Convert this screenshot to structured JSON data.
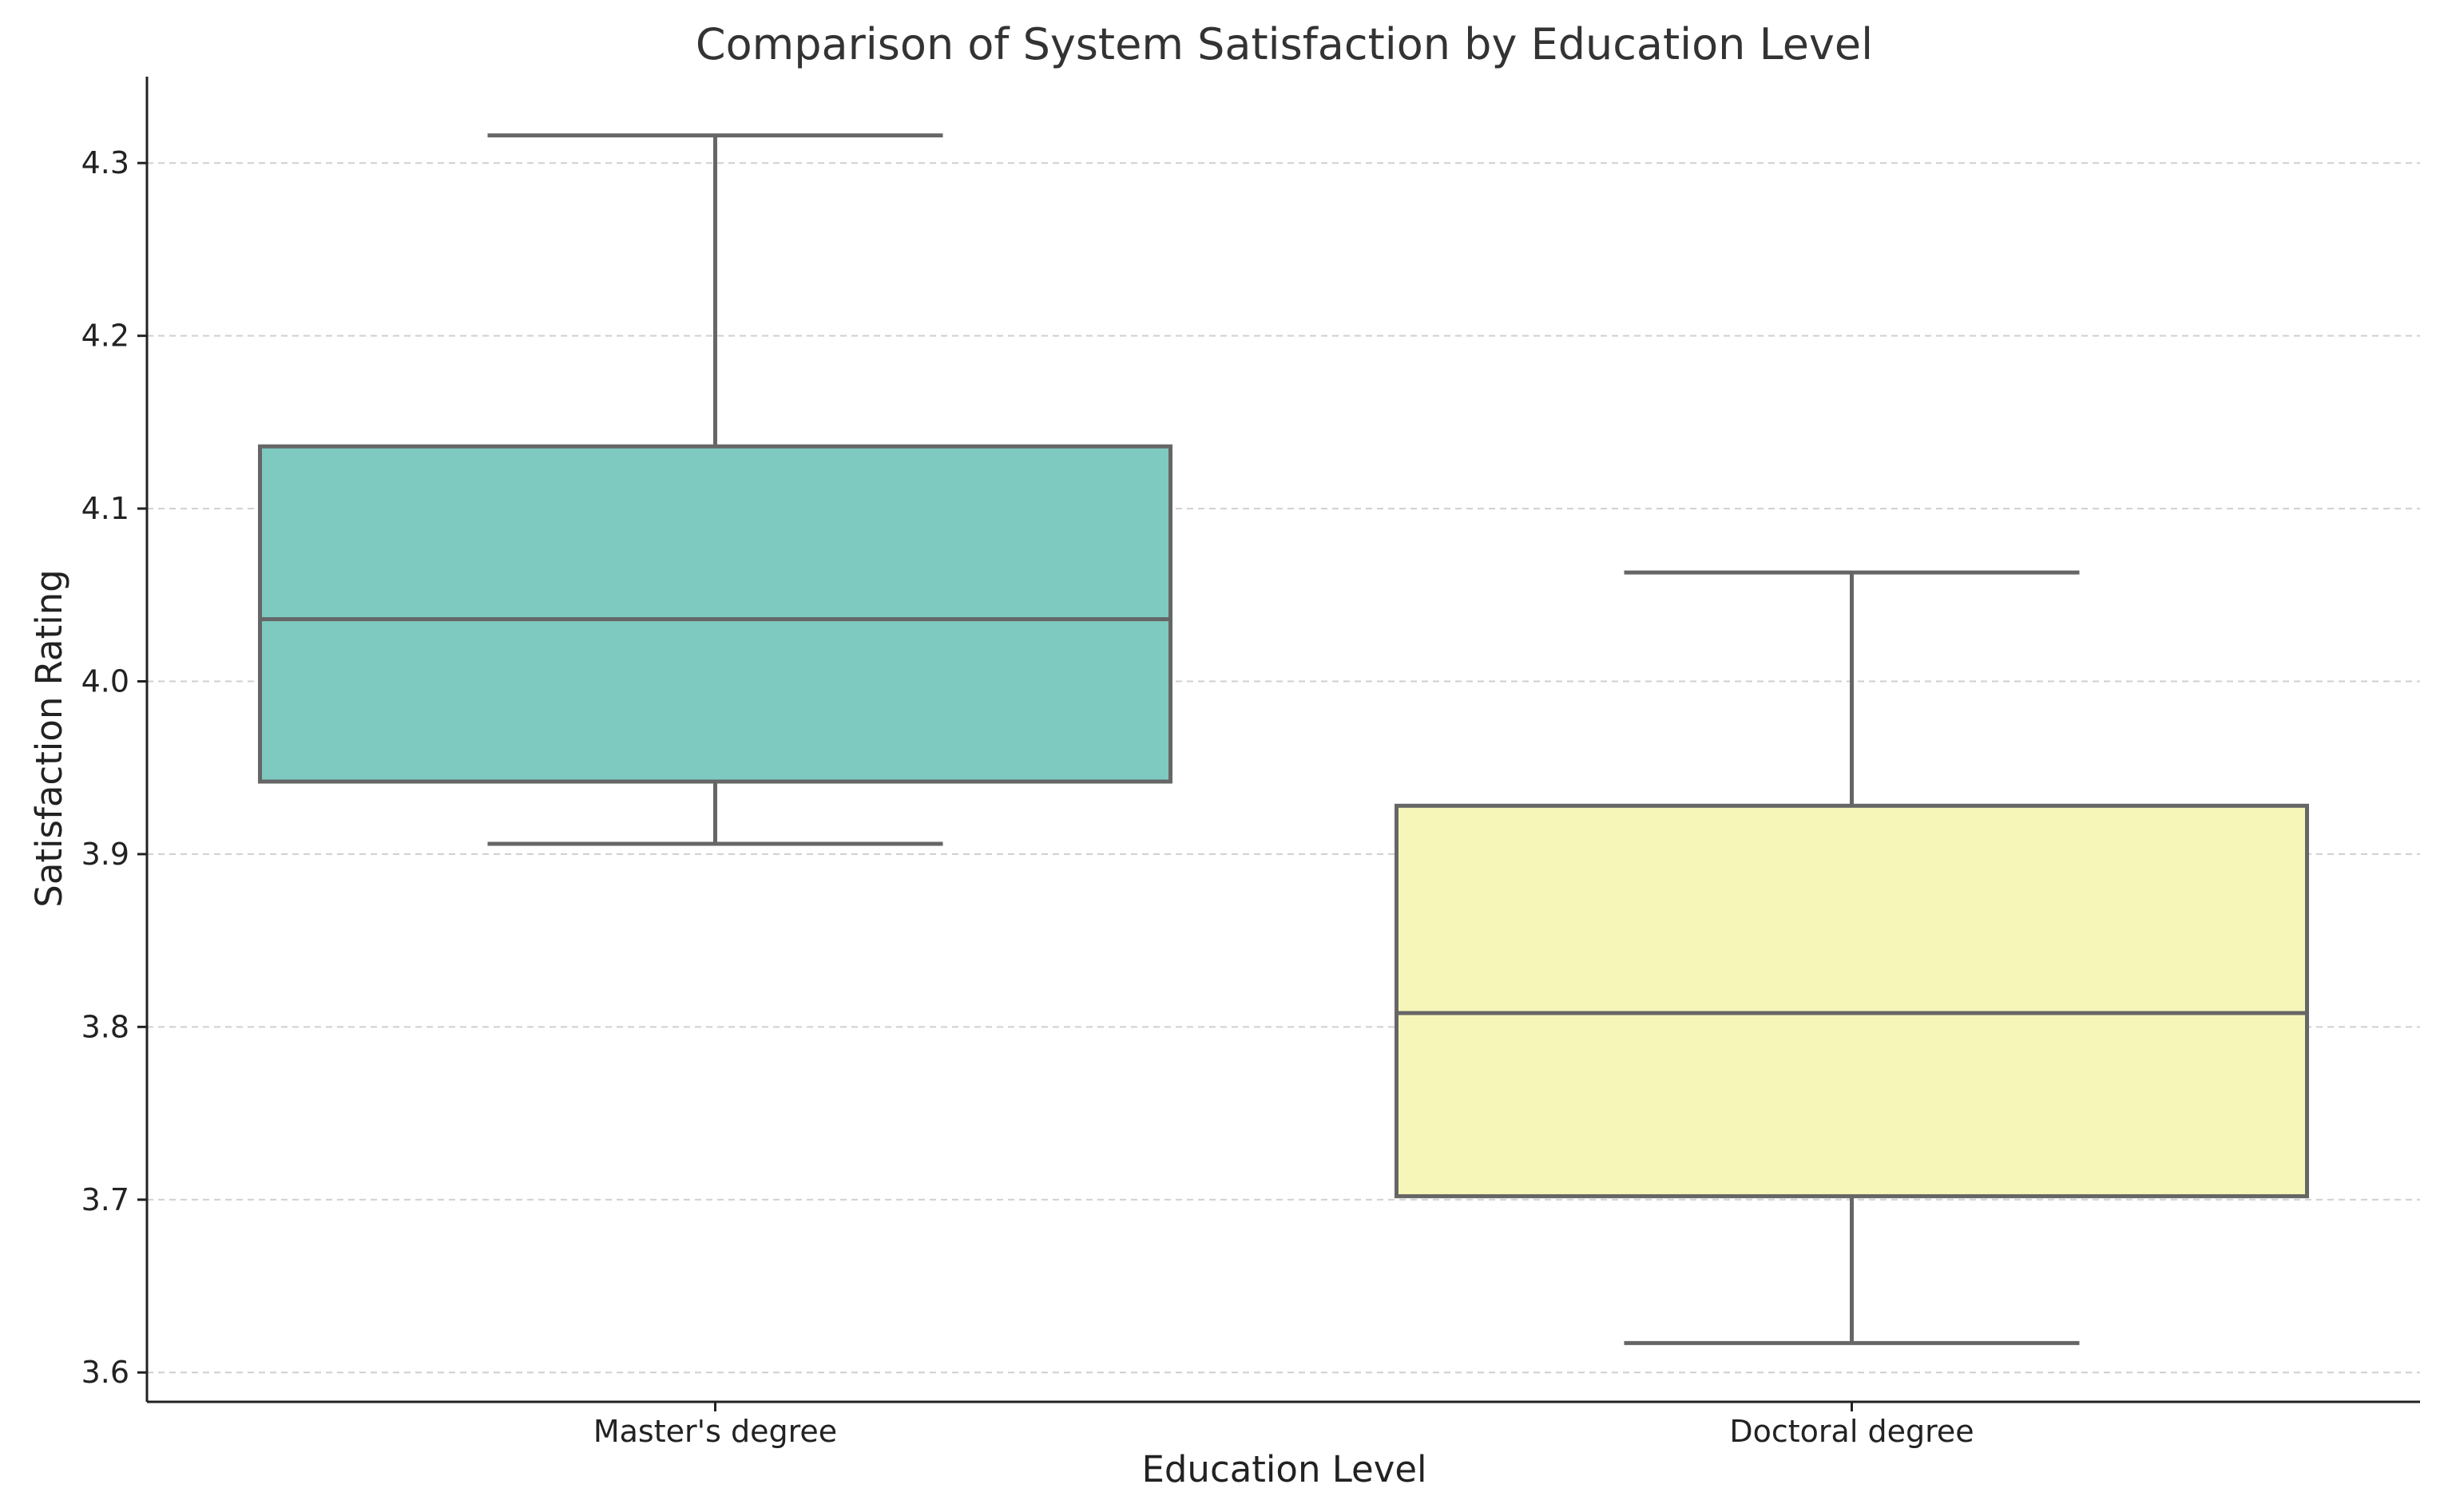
{
  "chart_data": {
    "type": "box",
    "title": "Comparison of System Satisfaction by Education Level",
    "xlabel": "Education Level",
    "ylabel": "Satisfaction Rating",
    "ylim": [
      3.583,
      4.35
    ],
    "yticks": [
      3.6,
      3.7,
      3.8,
      3.9,
      4.0,
      4.1,
      4.2,
      4.3
    ],
    "ytick_labels": [
      "3.6",
      "3.7",
      "3.8",
      "3.9",
      "4.0",
      "4.1",
      "4.2",
      "4.3"
    ],
    "grid": "y-dashed",
    "categories": [
      "Master's degree",
      "Doctoral degree"
    ],
    "boxes": [
      {
        "name": "Master's degree",
        "whisker_low": 3.906,
        "q1": 3.942,
        "median": 4.036,
        "q3": 4.136,
        "whisker_high": 4.316,
        "color": "#7ecac0"
      },
      {
        "name": "Doctoral degree",
        "whisker_low": 3.617,
        "q1": 3.702,
        "median": 3.808,
        "q3": 3.928,
        "whisker_high": 4.063,
        "color": "#f6f6b9"
      }
    ],
    "line_color": "#666666"
  }
}
